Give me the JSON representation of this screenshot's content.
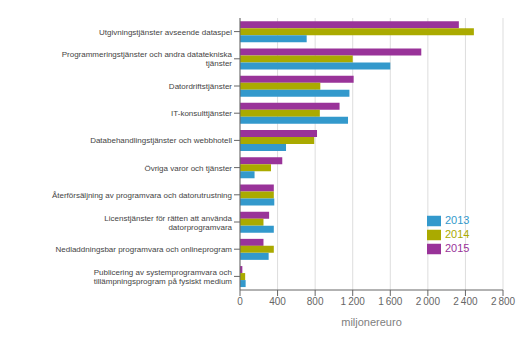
{
  "chart_data": {
    "type": "bar",
    "orientation": "horizontal",
    "categories": [
      "Publicering av systemprogramvara och\ntillämpningsprogram på fysiskt medium",
      "Nedladdningsbar programvara och onlineprogram",
      "Licenstjänster för rätten att använda\ndatorprogramvara",
      "Återförsäljning av programvara och datorutrustning",
      "Övriga varor och tjänster",
      "Databehandlingstjänster och webbhotell",
      "IT-konsulttjänster",
      "Datordriftstjänster",
      "Programmeringstjänster och andra datatekniska\ntjänster",
      "Utgivningstjänster avseende dataspel"
    ],
    "series": [
      {
        "name": "2015",
        "color": "#993399",
        "values": [
          25,
          250,
          310,
          360,
          450,
          820,
          1060,
          1210,
          1930,
          2330
        ]
      },
      {
        "name": "2014",
        "color": "#aaaa00",
        "values": [
          55,
          360,
          250,
          360,
          330,
          790,
          850,
          855,
          1200,
          2490
        ]
      },
      {
        "name": "2013",
        "color": "#3399cc",
        "values": [
          60,
          305,
          360,
          365,
          155,
          490,
          1150,
          1165,
          1600,
          710
        ]
      }
    ],
    "xlabel": "miljonereuro",
    "xlim": [
      0,
      2800
    ],
    "xticks": [
      0,
      400,
      800,
      {
        "value": 1200,
        "label": "1 200"
      },
      {
        "value": 1600,
        "label": "1 600"
      },
      {
        "value": 2000,
        "label": "2 000"
      },
      {
        "value": 2400,
        "label": "2 400"
      },
      {
        "value": 2800,
        "label": "2 800"
      }
    ],
    "grid": true,
    "legend": "lower right"
  }
}
